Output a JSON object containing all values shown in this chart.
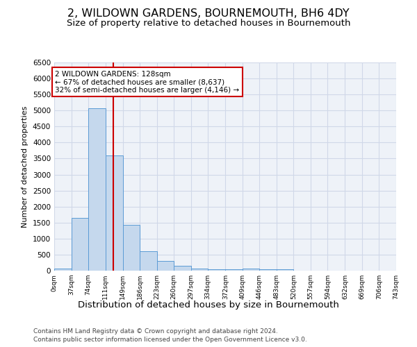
{
  "title": "2, WILDOWN GARDENS, BOURNEMOUTH, BH6 4DY",
  "subtitle": "Size of property relative to detached houses in Bournemouth",
  "xlabel": "Distribution of detached houses by size in Bournemouth",
  "ylabel": "Number of detached properties",
  "bar_edges": [
    0,
    37,
    74,
    111,
    149,
    186,
    223,
    260,
    297,
    334,
    372,
    409,
    446,
    483,
    520,
    557,
    594,
    632,
    669,
    706,
    743
  ],
  "bar_heights": [
    75,
    1650,
    5075,
    3600,
    1430,
    610,
    300,
    150,
    75,
    50,
    50,
    75,
    50,
    50,
    0,
    0,
    0,
    0,
    0,
    0
  ],
  "bar_color": "#c5d8ed",
  "bar_edge_color": "#5b9bd5",
  "vline_x": 128,
  "vline_color": "#cc0000",
  "annotation_text": "2 WILDOWN GARDENS: 128sqm\n← 67% of detached houses are smaller (8,637)\n32% of semi-detached houses are larger (4,146) →",
  "annotation_box_color": "#ffffff",
  "annotation_box_edge_color": "#cc0000",
  "ylim": [
    0,
    6500
  ],
  "yticks": [
    0,
    500,
    1000,
    1500,
    2000,
    2500,
    3000,
    3500,
    4000,
    4500,
    5000,
    5500,
    6000,
    6500
  ],
  "tick_labels": [
    "0sqm",
    "37sqm",
    "74sqm",
    "111sqm",
    "149sqm",
    "186sqm",
    "223sqm",
    "260sqm",
    "297sqm",
    "334sqm",
    "372sqm",
    "409sqm",
    "446sqm",
    "483sqm",
    "520sqm",
    "557sqm",
    "594sqm",
    "632sqm",
    "669sqm",
    "706sqm",
    "743sqm"
  ],
  "grid_color": "#d0d8e8",
  "background_color": "#eef2f8",
  "footer_line1": "Contains HM Land Registry data © Crown copyright and database right 2024.",
  "footer_line2": "Contains public sector information licensed under the Open Government Licence v3.0.",
  "title_fontsize": 11.5,
  "subtitle_fontsize": 9.5,
  "xlabel_fontsize": 9.5,
  "ylabel_fontsize": 8,
  "footer_fontsize": 6.5,
  "annotation_fontsize": 7.5
}
